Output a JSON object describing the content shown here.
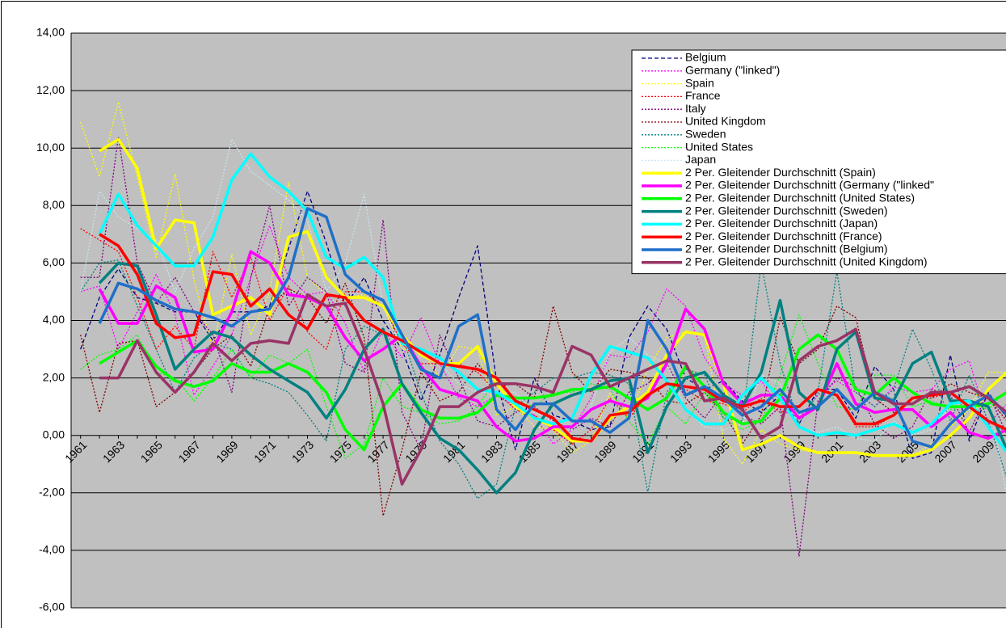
{
  "chart_data": {
    "type": "line",
    "categories": [
      "1961",
      null,
      "1963",
      null,
      "1965",
      null,
      "1967",
      null,
      "1969",
      null,
      "1971",
      null,
      "1973",
      null,
      "1975",
      null,
      "1977",
      null,
      "1979",
      null,
      "1981",
      null,
      "1983",
      null,
      "1985",
      null,
      "1987",
      null,
      "1989",
      null,
      "1991",
      null,
      "1993",
      null,
      "1995",
      null,
      "1997",
      null,
      "1999",
      null,
      "2001",
      null,
      "2003",
      null,
      "2005",
      null,
      "2007",
      null,
      "2009",
      null
    ],
    "ylim": [
      -6,
      14
    ],
    "yticks": [
      {
        "value": -6,
        "label": "-6,00"
      },
      {
        "value": -4,
        "label": "-4,00"
      },
      {
        "value": -2,
        "label": "-2,00"
      },
      {
        "value": 0,
        "label": "0,00"
      },
      {
        "value": 2,
        "label": "2,00"
      },
      {
        "value": 4,
        "label": "4,00"
      },
      {
        "value": 6,
        "label": "6,00"
      },
      {
        "value": 8,
        "label": "8,00"
      },
      {
        "value": 10,
        "label": "10,00"
      },
      {
        "value": 12,
        "label": "12,00"
      },
      {
        "value": 14,
        "label": "14,00"
      }
    ],
    "grid": true,
    "legend": "top-right",
    "series": [
      {
        "name": "Belgium",
        "color": "#000080",
        "line_style": "dashed",
        "values": [
          3.0,
          4.8,
          5.8,
          4.8,
          4.6,
          4.3,
          4.3,
          3.3,
          4.3,
          4.3,
          4.5,
          6.5,
          8.5,
          6.7,
          4.5,
          5.5,
          4.0,
          3.0,
          1.2,
          2.8,
          4.8,
          6.6,
          1.9,
          -0.5,
          2.0,
          0.7,
          0.5,
          0.2,
          0.3,
          3.4,
          4.5,
          3.7,
          2.0,
          1.6,
          1.9,
          1.2,
          0.8,
          1.4,
          0.4,
          1.6,
          1.6,
          0.6,
          2.4,
          1.6,
          -0.8,
          -0.6,
          2.8,
          -0.2,
          1.5,
          0.6
        ]
      },
      {
        "name": "Germany (\"linked\")",
        "color": "#ff00ff",
        "line_style": "dotted",
        "values": [
          5.0,
          5.2,
          3.0,
          4.3,
          5.6,
          4.2,
          1.4,
          2.4,
          3.5,
          5.5,
          7.3,
          5.5,
          4.9,
          5.0,
          3.9,
          2.2,
          3.7,
          2.7,
          4.1,
          2.5,
          1.3,
          1.0,
          1.4,
          1.0,
          0.7,
          -0.3,
          0.2,
          1.3,
          2.8,
          2.7,
          3.6,
          5.1,
          4.5,
          2.7,
          1.8,
          1.4,
          1.9,
          0.9,
          0.6,
          1.4,
          1.9,
          1.5,
          1.0,
          1.7,
          1.5,
          1.6,
          2.3,
          2.6,
          0.4,
          1.1
        ]
      },
      {
        "name": "Spain",
        "color": "#ffff00",
        "line_style": "dotted",
        "values": [
          10.9,
          9.0,
          11.6,
          9.0,
          6.2,
          9.1,
          5.4,
          3.0,
          6.3,
          3.5,
          5.0,
          8.8,
          5.5,
          4.9,
          4.8,
          4.9,
          4.5,
          3.0,
          3.0,
          2.0,
          3.1,
          3.0,
          0.7,
          1.0,
          0.3,
          0.2,
          -0.6,
          -0.2,
          1.5,
          0.6,
          2.3,
          3.4,
          3.6,
          3.5,
          -0.1,
          -1.0,
          0.2,
          -0.3,
          -0.5,
          -0.6,
          -0.6,
          -0.6,
          -0.7,
          -0.7,
          -0.7,
          -0.3,
          0.3,
          0.9,
          2.2,
          2.2
        ]
      },
      {
        "name": "France",
        "color": "#ff0000",
        "line_style": "dotted",
        "values": [
          7.2,
          6.8,
          6.4,
          4.8,
          3.0,
          3.8,
          3.0,
          6.4,
          4.8,
          6.2,
          4.0,
          5.2,
          3.6,
          3.0,
          5.0,
          5.0,
          4.5,
          3.2,
          2.5,
          2.5,
          2.5,
          2.2,
          1.5,
          0.9,
          0.7,
          0.2,
          -0.3,
          0.2,
          1.3,
          0.6,
          1.4,
          1.8,
          1.6,
          1.2,
          1.1,
          0.8,
          1.3,
          0.8,
          1.0,
          1.6,
          1.4,
          0.3,
          0.3,
          0.7,
          1.3,
          1.3,
          1.5,
          1.0,
          0.5,
          0.1
        ]
      },
      {
        "name": "Italy",
        "color": "#800080",
        "line_style": "dotted",
        "values": [
          5.5,
          5.5,
          10.4,
          6.0,
          4.6,
          5.5,
          4.3,
          3.5,
          1.5,
          5.5,
          8.0,
          4.5,
          5.5,
          5.0,
          2.5,
          2.2,
          7.5,
          0.8,
          -0.5,
          3.5,
          2.0,
          0.5,
          0.3,
          0.8,
          1.0,
          0.5,
          0.2,
          0.6,
          0.3,
          1.5,
          1.8,
          2.5,
          1.3,
          0.6,
          1.5,
          0.7,
          0.4,
          1.0,
          -4.2,
          1.2,
          2.0,
          1.7,
          0.4,
          -0.1,
          0.3,
          1.6,
          1.4,
          0.1,
          1.5,
          0.0
        ]
      },
      {
        "name": "United Kingdom",
        "color": "#800000",
        "line_style": "dotted",
        "values": [
          3.5,
          0.8,
          3.2,
          3.3,
          1.0,
          1.5,
          2.2,
          3.0,
          3.5,
          2.4,
          4.5,
          5.1,
          4.8,
          3.9,
          5.3,
          3.4,
          -2.8,
          -0.5,
          2.2,
          1.2,
          1.5,
          2.5,
          1.7,
          1.8,
          1.3,
          4.5,
          2.2,
          1.5,
          2.3,
          2.2,
          2.0,
          1.2,
          1.1,
          1.5,
          0.8,
          -0.3,
          0.7,
          4.1,
          2.5,
          3.0,
          4.5,
          4.1,
          1.3,
          0.8,
          1.3,
          1.3,
          1.8,
          1.5,
          1.3,
          0.5
        ]
      },
      {
        "name": "Sweden",
        "color": "#008080",
        "line_style": "dotted",
        "values": [
          5.0,
          6.0,
          6.1,
          4.5,
          3.0,
          1.5,
          2.7,
          3.2,
          3.0,
          2.0,
          1.8,
          1.5,
          0.7,
          -0.2,
          3.0,
          3.8,
          3.5,
          3.5,
          1.5,
          -0.2,
          -1.0,
          -2.2,
          -1.7,
          1.0,
          1.5,
          2.0,
          2.0,
          2.2,
          2.1,
          1.8,
          -2.0,
          1.5,
          2.3,
          2.1,
          0.6,
          0.5,
          6.0,
          2.5,
          0.4,
          1.5,
          5.7,
          1.5,
          1.0,
          1.6,
          3.7,
          2.3,
          0.5,
          2.1,
          0.5,
          -1.5
        ]
      },
      {
        "name": "United States",
        "color": "#00ff00",
        "line_style": "dotted",
        "values": [
          2.3,
          2.8,
          3.0,
          3.5,
          2.2,
          2.0,
          1.2,
          2.0,
          3.0,
          2.0,
          2.8,
          2.5,
          3.0,
          1.0,
          -0.8,
          -0.3,
          2.0,
          1.0,
          0.8,
          0.4,
          0.5,
          1.0,
          2.0,
          1.2,
          1.0,
          1.5,
          1.5,
          1.8,
          1.6,
          0.5,
          -0.3,
          1.0,
          0.4,
          1.5,
          0.6,
          0.2,
          0.5,
          2.1,
          4.2,
          2.5,
          1.0,
          0.9,
          2.1,
          2.1,
          1.0,
          1.2,
          0.9,
          1.1,
          0.9,
          1.6
        ]
      },
      {
        "name": "Japan",
        "color": "#c8e6f0",
        "line_style": "dotted",
        "values": [
          5.0,
          8.5,
          7.6,
          7.2,
          6.8,
          5.0,
          6.5,
          7.6,
          10.3,
          9.2,
          8.7,
          8.2,
          7.5,
          5.0,
          6.0,
          8.4,
          4.5,
          3.0,
          3.0,
          2.5,
          1.8,
          1.5,
          1.5,
          1.5,
          0.8,
          0.5,
          0.2,
          1.0,
          2.9,
          3.4,
          2.8,
          2.5,
          0.9,
          0.3,
          0.2,
          0.4,
          2.1,
          1.8,
          0.3,
          0.1,
          0.3,
          -0.1,
          -0.2,
          0.5,
          0.0,
          0.2,
          1.0,
          1.2,
          1.4,
          -2.2
        ]
      },
      {
        "name": "2 Per. Gleitender Durchschnitt (Spain)",
        "color": "#ffff00",
        "line_style": "solid",
        "values": [
          null,
          9.9,
          10.3,
          9.3,
          6.5,
          7.5,
          7.4,
          4.2,
          4.5,
          4.8,
          4.2,
          6.9,
          7.1,
          5.5,
          4.8,
          4.8,
          4.5,
          3.5,
          2.8,
          2.5,
          2.5,
          3.1,
          1.8,
          1.0,
          0.6,
          0.3,
          -0.2,
          -0.2,
          0.6,
          1.0,
          1.5,
          2.8,
          3.6,
          3.5,
          1.8,
          -0.5,
          -0.3,
          0.0,
          -0.4,
          -0.6,
          -0.6,
          -0.6,
          -0.7,
          -0.7,
          -0.7,
          -0.5,
          0.0,
          0.6,
          1.6,
          2.2
        ]
      },
      {
        "name": "2 Per. Gleitender Durchschnitt (Germany (\"linked\"",
        "color": "#ff00ff",
        "line_style": "solid",
        "values": [
          null,
          5.1,
          3.9,
          3.9,
          5.2,
          4.8,
          2.9,
          3.0,
          4.3,
          6.4,
          6.0,
          4.9,
          4.8,
          4.5,
          3.4,
          2.6,
          3.0,
          3.5,
          2.4,
          1.6,
          1.4,
          1.2,
          0.3,
          -0.2,
          -0.1,
          0.3,
          0.3,
          0.9,
          1.2,
          1.0,
          1.3,
          2.5,
          4.4,
          3.7,
          1.8,
          1.1,
          1.4,
          1.4,
          0.6,
          1.0,
          2.5,
          1.1,
          0.8,
          0.9,
          0.9,
          0.3,
          0.8,
          0.1,
          -0.1,
          0.2
        ]
      },
      {
        "name": "2 Per. Gleitender Durchschnitt (United States)",
        "color": "#00ff00",
        "line_style": "solid",
        "values": [
          null,
          2.5,
          2.9,
          3.3,
          2.4,
          1.9,
          1.7,
          1.9,
          2.5,
          2.2,
          2.2,
          2.5,
          2.2,
          1.5,
          0.2,
          -0.5,
          1.0,
          1.8,
          0.9,
          0.6,
          0.6,
          0.8,
          1.4,
          1.3,
          1.3,
          1.4,
          1.6,
          1.6,
          1.7,
          1.3,
          0.9,
          1.3,
          2.4,
          1.7,
          0.8,
          0.4,
          0.5,
          1.3,
          3.0,
          3.5,
          3.0,
          1.6,
          1.4,
          2.0,
          1.5,
          1.1,
          1.0,
          1.0,
          1.1,
          1.5
        ]
      },
      {
        "name": "2 Per. Gleitender Durchschnitt (Sweden)",
        "color": "#008080",
        "line_style": "solid",
        "values": [
          null,
          5.3,
          6.0,
          5.9,
          4.2,
          2.3,
          3.0,
          3.6,
          3.4,
          2.8,
          2.3,
          1.9,
          1.5,
          0.6,
          1.6,
          3.0,
          3.7,
          1.8,
          0.8,
          -0.1,
          -0.5,
          -1.2,
          -2.0,
          -1.3,
          0.2,
          1.1,
          1.4,
          1.6,
          1.9,
          2.0,
          -0.6,
          1.0,
          2.0,
          2.2,
          1.4,
          1.0,
          2.2,
          4.7,
          1.5,
          0.9,
          3.0,
          3.6,
          1.3,
          1.2,
          2.5,
          2.9,
          1.2,
          1.2,
          1.0,
          -0.5
        ]
      },
      {
        "name": "2 Per. Gleitender Durchschnitt (Japan)",
        "color": "#00ffff",
        "line_style": "solid",
        "values": [
          null,
          7.0,
          8.4,
          7.3,
          6.6,
          5.9,
          5.9,
          6.9,
          8.9,
          9.8,
          9.0,
          8.5,
          7.8,
          6.2,
          5.8,
          6.2,
          5.5,
          3.2,
          3.0,
          2.7,
          2.2,
          1.6,
          1.5,
          1.1,
          0.6,
          0.4,
          0.6,
          2.1,
          3.1,
          2.9,
          2.7,
          1.9,
          0.9,
          0.4,
          0.4,
          1.4,
          2.0,
          1.3,
          0.3,
          0.0,
          0.1,
          0.0,
          0.2,
          0.4,
          0.1,
          0.4,
          1.1,
          1.2,
          0.3,
          -0.6
        ]
      },
      {
        "name": "2 Per. Gleitender Durchschnitt (France)",
        "color": "#ff0000",
        "line_style": "solid",
        "values": [
          null,
          7.0,
          6.6,
          5.6,
          3.9,
          3.4,
          3.5,
          5.7,
          5.6,
          4.5,
          5.1,
          4.2,
          3.7,
          4.9,
          4.8,
          4.0,
          3.6,
          3.3,
          2.9,
          2.5,
          2.4,
          2.3,
          2.0,
          1.2,
          0.9,
          0.6,
          -0.1,
          -0.2,
          0.7,
          0.8,
          1.4,
          1.8,
          1.7,
          1.6,
          1.2,
          1.0,
          1.2,
          1.0,
          1.0,
          1.6,
          1.4,
          0.4,
          0.4,
          0.7,
          1.3,
          1.4,
          1.5,
          1.0,
          0.5,
          0.2
        ]
      },
      {
        "name": "2 Per. Gleitender Durchschnitt (Belgium)",
        "color": "#1f6fc8",
        "line_style": "solid",
        "values": [
          null,
          3.9,
          5.3,
          5.1,
          4.7,
          4.4,
          4.3,
          4.1,
          3.8,
          4.3,
          4.4,
          5.5,
          7.9,
          7.6,
          5.6,
          5.0,
          4.7,
          3.5,
          2.3,
          2.0,
          3.8,
          4.2,
          0.9,
          0.2,
          1.1,
          1.1,
          0.5,
          0.5,
          0.1,
          0.6,
          4.0,
          3.0,
          1.4,
          1.7,
          1.3,
          0.7,
          1.0,
          1.6,
          0.8,
          1.0,
          1.6,
          0.9,
          1.5,
          1.2,
          -0.2,
          -0.4,
          0.4,
          1.0,
          1.4,
          0.7
        ]
      },
      {
        "name": "2 Per. Gleitender Durchschnitt (United Kingdom)",
        "color": "#993366",
        "line_style": "solid",
        "values": [
          null,
          2.0,
          2.0,
          3.3,
          2.2,
          1.5,
          2.2,
          3.2,
          2.6,
          3.2,
          3.3,
          3.2,
          4.9,
          4.5,
          4.6,
          3.0,
          1.1,
          -1.7,
          -0.5,
          1.0,
          1.0,
          1.5,
          1.8,
          1.8,
          1.7,
          1.5,
          3.1,
          2.8,
          1.7,
          2.0,
          2.3,
          2.6,
          2.5,
          1.2,
          1.3,
          0.9,
          -0.1,
          0.3,
          2.6,
          3.1,
          3.3,
          3.7,
          1.5,
          1.1,
          1.1,
          1.5,
          1.5,
          1.7,
          1.3,
          0.8
        ]
      }
    ]
  }
}
